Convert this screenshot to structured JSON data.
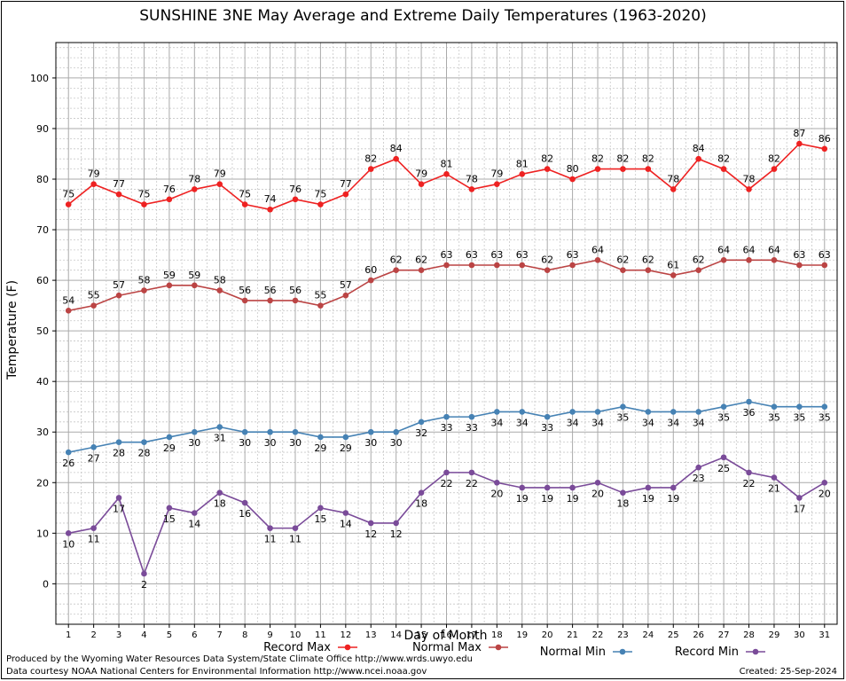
{
  "chart_data": {
    "type": "line",
    "title": "SUNSHINE 3NE May Average and Extreme Daily Temperatures (1963-2020)",
    "xlabel": "Day of Month",
    "ylabel": "Temperature (F)",
    "xlim": [
      0.5,
      31.5
    ],
    "ylim": [
      -8,
      107
    ],
    "yticks": [
      0,
      10,
      20,
      30,
      40,
      50,
      60,
      70,
      80,
      90,
      100
    ],
    "grid": true,
    "legend_position": "bottom",
    "x": [
      1,
      2,
      3,
      4,
      5,
      6,
      7,
      8,
      9,
      10,
      11,
      12,
      13,
      14,
      15,
      16,
      17,
      18,
      19,
      20,
      21,
      22,
      23,
      24,
      25,
      26,
      27,
      28,
      29,
      30,
      31
    ],
    "series": [
      {
        "name": "Record Max",
        "color": "#ee2222",
        "label_pos": "above",
        "values": [
          75,
          79,
          77,
          75,
          76,
          78,
          79,
          75,
          74,
          76,
          75,
          77,
          82,
          84,
          79,
          81,
          78,
          79,
          81,
          82,
          80,
          82,
          82,
          82,
          78,
          84,
          82,
          78,
          82,
          87,
          86
        ]
      },
      {
        "name": "Normal Max",
        "color": "#bb4444",
        "label_pos": "above",
        "values": [
          54,
          55,
          57,
          58,
          59,
          59,
          58,
          56,
          56,
          56,
          55,
          57,
          60,
          62,
          62,
          63,
          63,
          63,
          63,
          62,
          63,
          64,
          62,
          62,
          61,
          62,
          64,
          64,
          64,
          63,
          63
        ]
      },
      {
        "name": "Normal Min",
        "color": "#4682b4",
        "label_pos": "below",
        "values": [
          26,
          27,
          28,
          28,
          29,
          30,
          31,
          30,
          30,
          30,
          29,
          29,
          30,
          30,
          32,
          33,
          33,
          34,
          34,
          33,
          34,
          34,
          35,
          34,
          34,
          34,
          35,
          36,
          35,
          35,
          35
        ]
      },
      {
        "name": "Record Min",
        "color": "#7a4b99",
        "label_pos": "below",
        "values": [
          10,
          11,
          17,
          2,
          15,
          14,
          18,
          16,
          11,
          11,
          15,
          14,
          12,
          12,
          18,
          22,
          22,
          20,
          19,
          19,
          19,
          20,
          18,
          19,
          19,
          23,
          25,
          22,
          21,
          17,
          20
        ]
      }
    ]
  },
  "footer": {
    "credit_line1": "Produced by the Wyoming Water Resources Data System/State Climate Office http://www.wrds.uwyo.edu",
    "credit_line2": "Data courtesy NOAA National Centers for Environmental Information http://www.ncei.noaa.gov",
    "created": "Created: 25-Sep-2024"
  }
}
